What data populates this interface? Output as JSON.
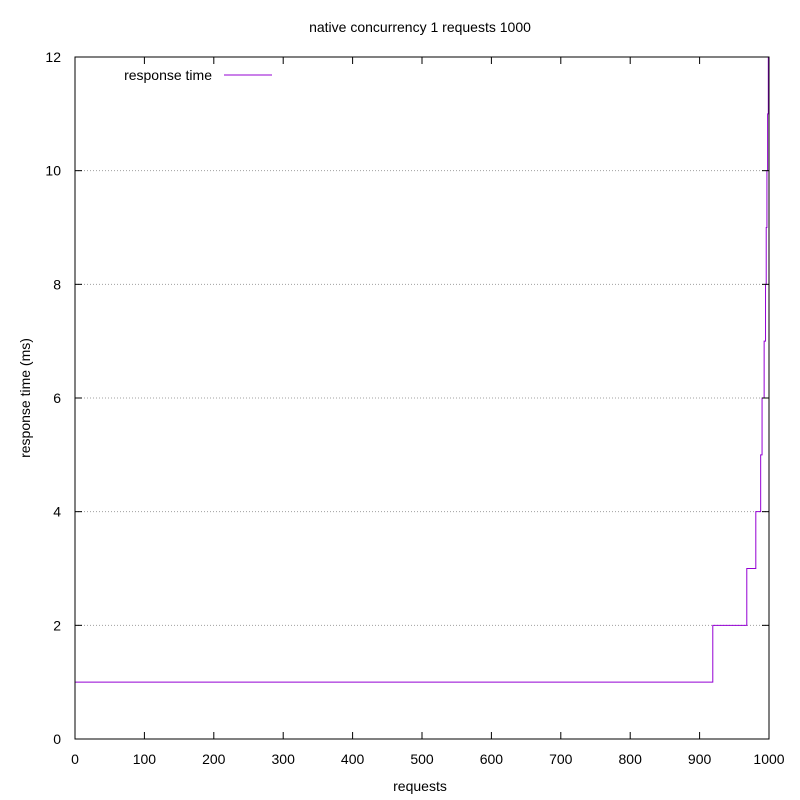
{
  "chart_data": {
    "type": "line",
    "title": "native concurrency 1 requests 1000",
    "xlabel": "requests",
    "ylabel": "response time (ms)",
    "xlim": [
      0,
      1000
    ],
    "ylim": [
      0,
      12
    ],
    "x_ticks": [
      0,
      100,
      200,
      300,
      400,
      500,
      600,
      700,
      800,
      900,
      1000
    ],
    "y_ticks": [
      0,
      2,
      4,
      6,
      8,
      10,
      12
    ],
    "grid": "horizontal dotted",
    "legend_position": "top-left",
    "series": [
      {
        "name": "response time",
        "color": "#9400d3",
        "step": true,
        "points": [
          [
            0,
            1
          ],
          [
            919,
            1
          ],
          [
            919,
            2
          ],
          [
            968,
            2
          ],
          [
            968,
            3
          ],
          [
            981,
            3
          ],
          [
            981,
            4
          ],
          [
            988,
            4
          ],
          [
            988,
            5
          ],
          [
            990,
            5
          ],
          [
            990,
            6
          ],
          [
            993,
            6
          ],
          [
            993,
            7
          ],
          [
            995,
            7
          ],
          [
            995,
            8
          ],
          [
            996,
            8
          ],
          [
            996,
            9
          ],
          [
            997,
            9
          ],
          [
            997,
            10
          ],
          [
            998,
            10
          ],
          [
            998,
            11
          ],
          [
            999,
            11
          ],
          [
            999,
            12
          ],
          [
            1000,
            12
          ]
        ]
      }
    ]
  }
}
